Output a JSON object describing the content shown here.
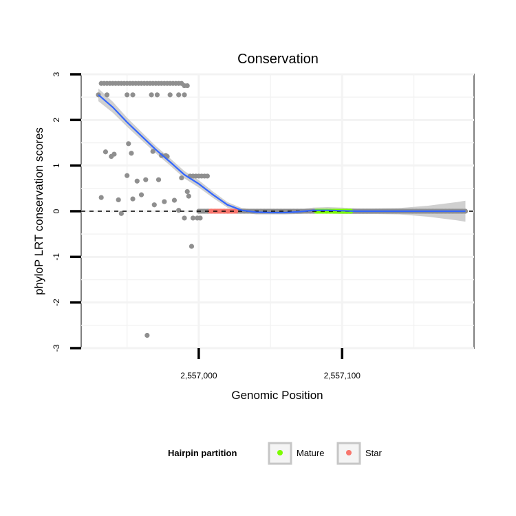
{
  "chart_data": {
    "type": "scatter",
    "title": "Conservation",
    "xlabel": "Genomic Position",
    "ylabel": "phyloP LRT conservation scores",
    "xlim": [
      2556918,
      2557192
    ],
    "ylim": [
      -3,
      3
    ],
    "x_ticks": [
      2557000,
      2557100
    ],
    "x_tick_labels": [
      "2,557,000",
      "2,557,100"
    ],
    "y_ticks": [
      -3,
      -2,
      -1,
      0,
      1,
      2,
      3
    ],
    "y_tick_labels": [
      "-3",
      "-2",
      "-1",
      "0",
      "1",
      "2",
      "3"
    ],
    "grid": true,
    "reference_line": {
      "y": 0,
      "style": "dashed"
    },
    "legend": {
      "title": "Hairpin partition",
      "placement": "bottom",
      "entries": [
        {
          "name": "Mature",
          "color": "#7cfc00"
        },
        {
          "name": "Star",
          "color": "#f8766d"
        }
      ]
    },
    "colors": {
      "points": "#8f8f8f",
      "smooth_line": "#3366ff",
      "confidence_band": "#c8c8c8",
      "mature": "#7cfc00",
      "star": "#f8766d"
    },
    "series": [
      {
        "name": "",
        "color": "#8f8f8f",
        "points": [
          [
            2556930,
            2.55
          ],
          [
            2556932,
            2.8
          ],
          [
            2556934,
            2.8
          ],
          [
            2556936,
            2.8
          ],
          [
            2556938,
            2.8
          ],
          [
            2556940,
            2.8
          ],
          [
            2556942,
            2.8
          ],
          [
            2556944,
            2.8
          ],
          [
            2556946,
            2.8
          ],
          [
            2556948,
            2.8
          ],
          [
            2556950,
            2.8
          ],
          [
            2556952,
            2.8
          ],
          [
            2556954,
            2.8
          ],
          [
            2556956,
            2.8
          ],
          [
            2556958,
            2.8
          ],
          [
            2556960,
            2.8
          ],
          [
            2556962,
            2.8
          ],
          [
            2556964,
            2.8
          ],
          [
            2556966,
            2.8
          ],
          [
            2556968,
            2.8
          ],
          [
            2556970,
            2.8
          ],
          [
            2556972,
            2.8
          ],
          [
            2556974,
            2.8
          ],
          [
            2556976,
            2.8
          ],
          [
            2556978,
            2.8
          ],
          [
            2556980,
            2.8
          ],
          [
            2556982,
            2.8
          ],
          [
            2556984,
            2.8
          ],
          [
            2556986,
            2.8
          ],
          [
            2556988,
            2.8
          ],
          [
            2556990,
            2.75
          ],
          [
            2556992,
            2.75
          ],
          [
            2556936,
            2.55
          ],
          [
            2556950,
            2.55
          ],
          [
            2556954,
            2.55
          ],
          [
            2556967,
            2.55
          ],
          [
            2556971,
            2.55
          ],
          [
            2556980,
            2.55
          ],
          [
            2556986,
            2.55
          ],
          [
            2556990,
            2.55
          ],
          [
            2556932,
            0.3
          ],
          [
            2556935,
            1.3
          ],
          [
            2556939,
            1.2
          ],
          [
            2556941,
            1.25
          ],
          [
            2556944,
            0.25
          ],
          [
            2556946,
            -0.05
          ],
          [
            2556950,
            0.78
          ],
          [
            2556951,
            1.48
          ],
          [
            2556953,
            1.27
          ],
          [
            2556954,
            0.27
          ],
          [
            2556957,
            0.66
          ],
          [
            2556960,
            0.36
          ],
          [
            2556963,
            0.69
          ],
          [
            2556964,
            -2.72
          ],
          [
            2556968,
            1.31
          ],
          [
            2556969,
            0.14
          ],
          [
            2556972,
            0.69
          ],
          [
            2556974,
            1.22
          ],
          [
            2556976,
            0.21
          ],
          [
            2556977,
            1.22
          ],
          [
            2556978,
            1.2
          ],
          [
            2556983,
            0.24
          ],
          [
            2556986,
            0.02
          ],
          [
            2556988,
            0.73
          ],
          [
            2556990,
            -0.15
          ],
          [
            2556992,
            0.43
          ],
          [
            2556993,
            0.33
          ],
          [
            2556995,
            -0.77
          ],
          [
            2556996,
            -0.15
          ],
          [
            2556999,
            -0.15
          ],
          [
            2557001,
            -0.15
          ],
          [
            2556994,
            0.77
          ],
          [
            2556996,
            0.77
          ],
          [
            2556998,
            0.77
          ],
          [
            2557000,
            0.77
          ],
          [
            2557002,
            0.77
          ],
          [
            2557004,
            0.77
          ],
          [
            2557006,
            0.77
          ]
        ]
      }
    ],
    "zero_range": [
      2557000,
      2557186
    ],
    "star_range": [
      2557008,
      2557026
    ],
    "mature_range": [
      2557082,
      2557106
    ],
    "smooth_curve": [
      [
        2556930,
        2.55
      ],
      [
        2556940,
        2.28
      ],
      [
        2556950,
        1.95
      ],
      [
        2556960,
        1.65
      ],
      [
        2556970,
        1.35
      ],
      [
        2556980,
        1.08
      ],
      [
        2556990,
        0.8
      ],
      [
        2557000,
        0.6
      ],
      [
        2557010,
        0.36
      ],
      [
        2557020,
        0.14
      ],
      [
        2557030,
        0.02
      ],
      [
        2557040,
        -0.02
      ],
      [
        2557050,
        -0.03
      ],
      [
        2557060,
        -0.03
      ],
      [
        2557070,
        -0.01
      ],
      [
        2557080,
        0.02
      ],
      [
        2557090,
        0.02
      ],
      [
        2557100,
        0.01
      ],
      [
        2557110,
        0.0
      ],
      [
        2557120,
        0.0
      ],
      [
        2557140,
        0.0
      ],
      [
        2557160,
        0.0
      ],
      [
        2557180,
        0.0
      ],
      [
        2557186,
        0.0
      ]
    ],
    "band_halfwidth": [
      [
        2556930,
        0.14
      ],
      [
        2556940,
        0.12
      ],
      [
        2556950,
        0.1
      ],
      [
        2556960,
        0.09
      ],
      [
        2556970,
        0.08
      ],
      [
        2556980,
        0.08
      ],
      [
        2556990,
        0.08
      ],
      [
        2557000,
        0.08
      ],
      [
        2557010,
        0.07
      ],
      [
        2557020,
        0.06
      ],
      [
        2557030,
        0.05
      ],
      [
        2557040,
        0.05
      ],
      [
        2557050,
        0.04
      ],
      [
        2557060,
        0.04
      ],
      [
        2557070,
        0.05
      ],
      [
        2557080,
        0.06
      ],
      [
        2557090,
        0.07
      ],
      [
        2557100,
        0.07
      ],
      [
        2557110,
        0.06
      ],
      [
        2557120,
        0.06
      ],
      [
        2557140,
        0.07
      ],
      [
        2557160,
        0.12
      ],
      [
        2557180,
        0.2
      ],
      [
        2557186,
        0.23
      ]
    ]
  }
}
